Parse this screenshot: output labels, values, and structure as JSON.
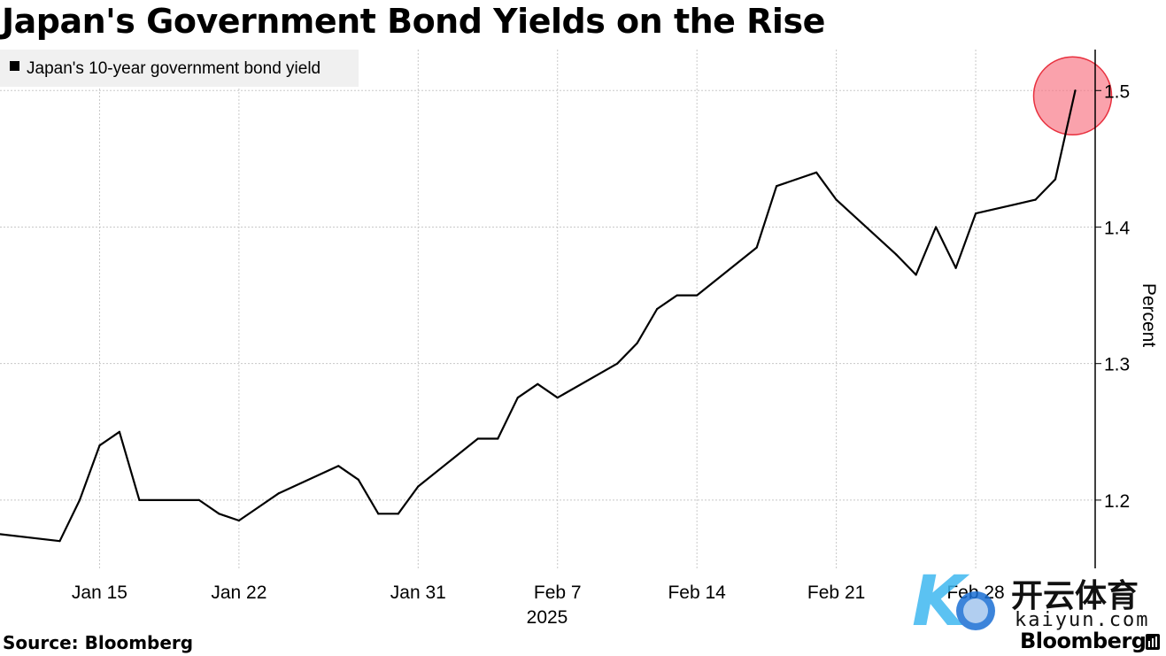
{
  "title": "Japan's Government Bond Yields on the Rise",
  "source": "Source: Bloomberg",
  "brand": "Bloomberg",
  "watermark": {
    "cn": "开云体育",
    "url": "kaiyun.com"
  },
  "chart_data": {
    "type": "line",
    "title": "Japan's Government Bond Yields on the Rise",
    "ylabel": "Percent",
    "xlabel": "",
    "year_label": "2025",
    "ylim": [
      1.15,
      1.53
    ],
    "yticks": [
      1.2,
      1.3,
      1.4,
      1.5
    ],
    "ytick_labels": [
      "1.2",
      "1.3",
      "1.4",
      "1.5"
    ],
    "xticks": [
      "2025-01-15",
      "2025-01-22",
      "2025-01-31",
      "2025-02-07",
      "2025-02-14",
      "2025-02-21",
      "2025-02-28"
    ],
    "xtick_labels": [
      "Jan 15",
      "Jan 22",
      "Jan 31",
      "Feb 7",
      "Feb 14",
      "Feb 21",
      "Feb 28"
    ],
    "xlim": [
      "2025-01-10",
      "2025-03-06"
    ],
    "grid": true,
    "legend_position": "top-left",
    "highlight": {
      "x": "2025-03-05",
      "y": 1.5,
      "color": "#f7707f"
    },
    "series": [
      {
        "name": "Japan's 10-year government bond yield",
        "color": "#000000",
        "x": [
          "2025-01-10",
          "2025-01-13",
          "2025-01-14",
          "2025-01-15",
          "2025-01-16",
          "2025-01-17",
          "2025-01-20",
          "2025-01-21",
          "2025-01-22",
          "2025-01-23",
          "2025-01-24",
          "2025-01-27",
          "2025-01-28",
          "2025-01-29",
          "2025-01-30",
          "2025-01-31",
          "2025-02-03",
          "2025-02-04",
          "2025-02-05",
          "2025-02-06",
          "2025-02-07",
          "2025-02-10",
          "2025-02-11",
          "2025-02-12",
          "2025-02-13",
          "2025-02-14",
          "2025-02-17",
          "2025-02-18",
          "2025-02-19",
          "2025-02-20",
          "2025-02-21",
          "2025-02-24",
          "2025-02-25",
          "2025-02-26",
          "2025-02-27",
          "2025-02-28",
          "2025-03-03",
          "2025-03-04",
          "2025-03-05"
        ],
        "values": [
          1.175,
          1.17,
          1.2,
          1.24,
          1.25,
          1.2,
          1.2,
          1.19,
          1.185,
          1.195,
          1.205,
          1.225,
          1.215,
          1.19,
          1.19,
          1.21,
          1.245,
          1.245,
          1.275,
          1.285,
          1.275,
          1.3,
          1.315,
          1.34,
          1.35,
          1.35,
          1.385,
          1.43,
          1.435,
          1.44,
          1.42,
          1.38,
          1.365,
          1.4,
          1.37,
          1.41,
          1.42,
          1.435,
          1.5
        ]
      }
    ]
  }
}
